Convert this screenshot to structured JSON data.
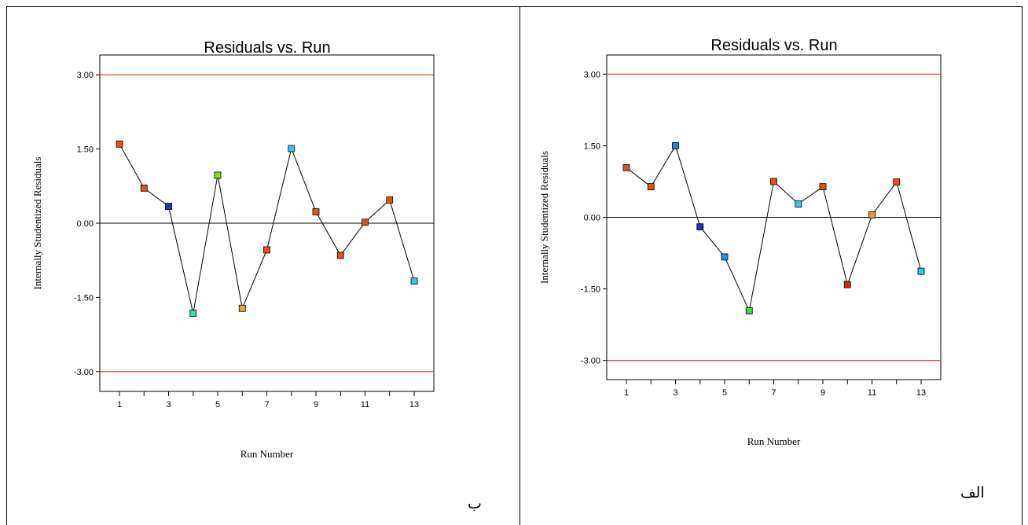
{
  "chart_data": [
    {
      "type": "scatter",
      "panel": "left",
      "panel_tag": "ب",
      "title": "Residuals vs. Run",
      "xlabel": "Run Number",
      "ylabel": "Internally Studentized Residuals",
      "xlim": [
        0.2,
        13.8
      ],
      "ylim": [
        -3.4,
        3.4
      ],
      "x_ticks": [
        1,
        3,
        5,
        7,
        9,
        11,
        13
      ],
      "y_ticks": [
        3.0,
        1.5,
        0.0,
        -1.5,
        -3.0
      ],
      "y_tick_labels": [
        "3.00",
        "1.50",
        "0.00",
        "-1.50",
        "-3.00"
      ],
      "limit_lines": [
        3.0,
        -3.0
      ],
      "limit_color": "#e03020",
      "x": [
        1,
        2,
        3,
        4,
        5,
        6,
        7,
        8,
        9,
        10,
        11,
        12,
        13
      ],
      "y": [
        1.6,
        0.71,
        0.34,
        -1.82,
        0.97,
        -1.72,
        -0.54,
        1.51,
        0.23,
        -0.65,
        0.02,
        0.47,
        -1.17
      ],
      "point_colors": [
        "#e8501a",
        "#e8501a",
        "#2030c8",
        "#40d8a8",
        "#80e020",
        "#e8b020",
        "#e8501a",
        "#30c8e8",
        "#e8501a",
        "#e8501a",
        "#e8501a",
        "#e8501a",
        "#30c8e8"
      ]
    },
    {
      "type": "scatter",
      "panel": "right",
      "panel_tag": "الف",
      "title": "Residuals vs. Run",
      "xlabel": "Run Number",
      "ylabel": "Internally Studentized Residuals",
      "xlim": [
        0.2,
        13.8
      ],
      "ylim": [
        -3.4,
        3.4
      ],
      "x_ticks": [
        1,
        3,
        5,
        7,
        9,
        11,
        13
      ],
      "y_ticks": [
        3.0,
        1.5,
        0.0,
        -1.5,
        -3.0
      ],
      "y_tick_labels": [
        "3.00",
        "1.50",
        "0.00",
        "-1.50",
        "-3.00"
      ],
      "limit_lines": [
        3.0,
        -3.0
      ],
      "limit_color": "#e03020",
      "x": [
        1,
        2,
        3,
        4,
        5,
        6,
        7,
        8,
        9,
        10,
        11,
        12,
        13
      ],
      "y": [
        1.04,
        0.64,
        1.5,
        -0.2,
        -0.83,
        -1.96,
        0.75,
        0.28,
        0.64,
        -1.41,
        0.05,
        0.74,
        -1.13
      ],
      "point_colors": [
        "#e8501a",
        "#e8501a",
        "#2a80e0",
        "#2030c8",
        "#2a90e0",
        "#40e030",
        "#e8501a",
        "#30c8e8",
        "#e8501a",
        "#e82010",
        "#e8a020",
        "#e8501a",
        "#30c8e8"
      ]
    }
  ]
}
